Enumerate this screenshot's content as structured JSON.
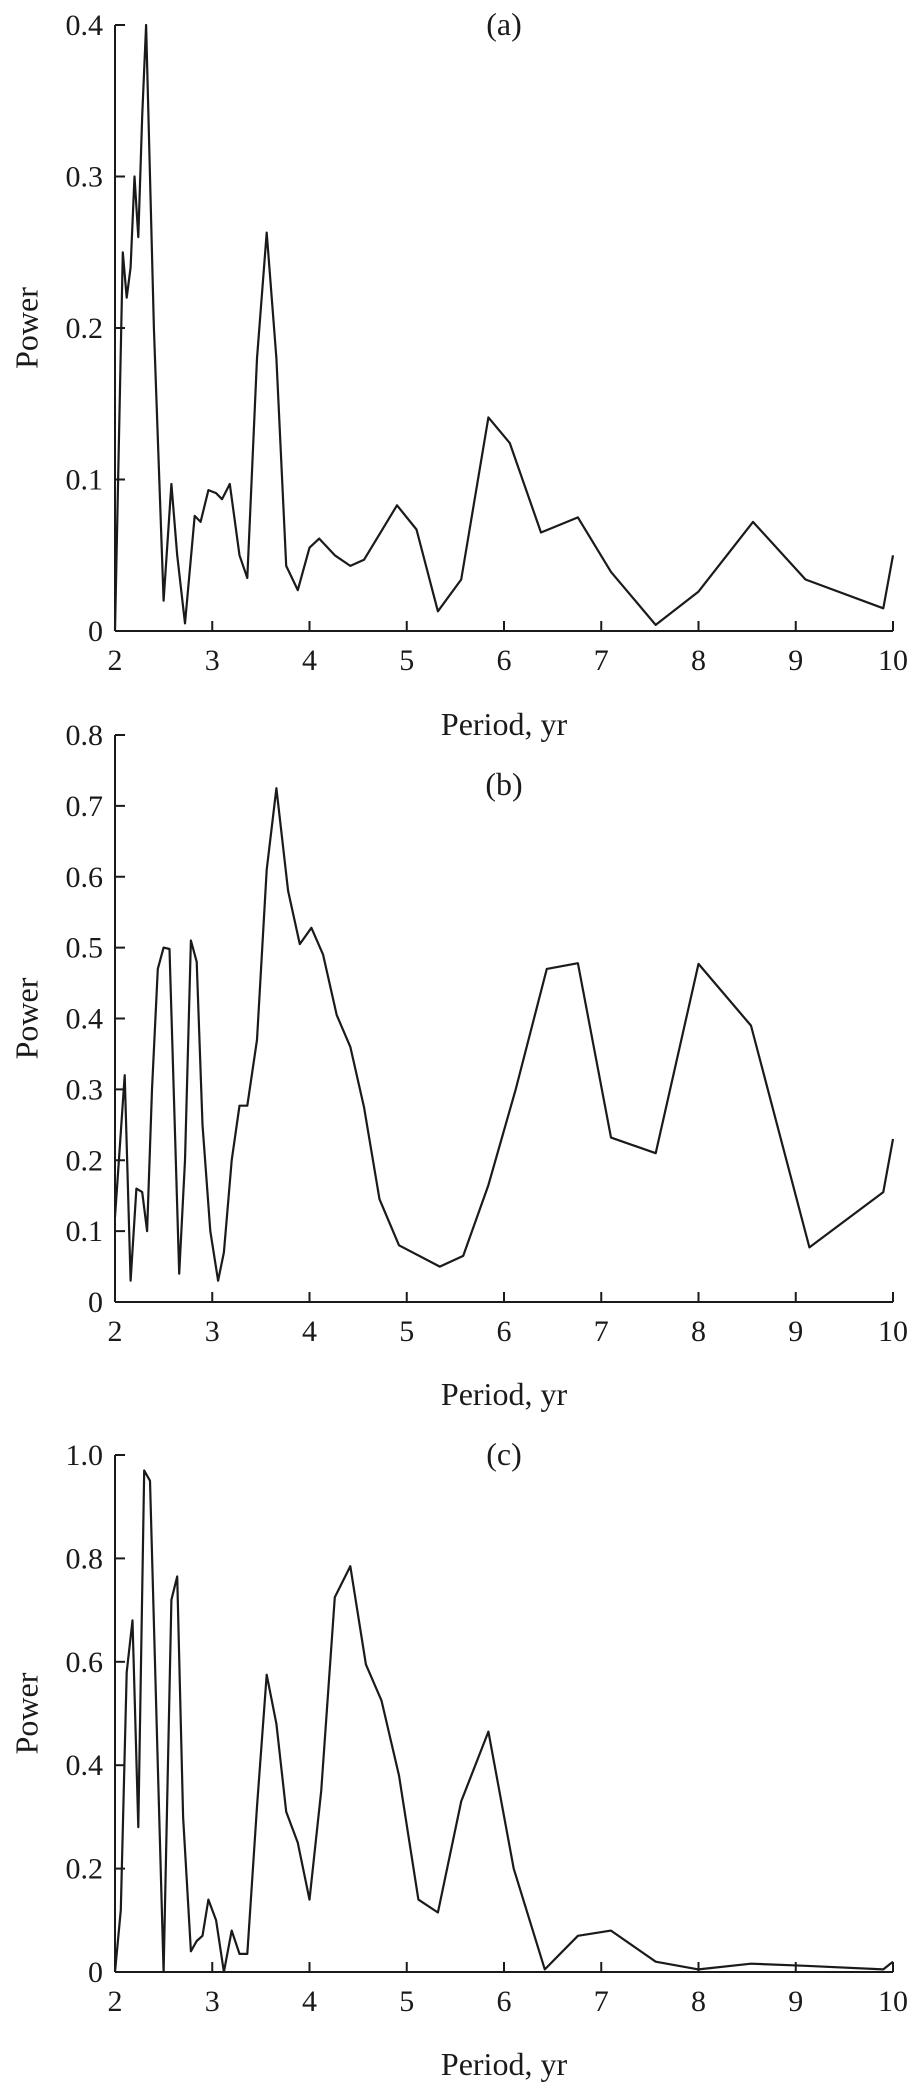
{
  "chart_data": [
    {
      "type": "line",
      "title": "(a)",
      "xlabel": "Period, yr",
      "ylabel": "Power",
      "xlim": [
        2,
        10
      ],
      "ylim": [
        0,
        0.4
      ],
      "xticks": [
        2,
        3,
        4,
        5,
        6,
        7,
        8,
        9,
        10
      ],
      "yticks": [
        0,
        0.1,
        0.2,
        0.3,
        0.4
      ],
      "ytick_labels": [
        "0",
        "0.1",
        "0.2",
        "0.3",
        "0.4"
      ],
      "x": [
        2.0,
        2.08,
        2.12,
        2.16,
        2.2,
        2.24,
        2.28,
        2.32,
        2.4,
        2.5,
        2.58,
        2.64,
        2.72,
        2.82,
        2.88,
        2.96,
        3.04,
        3.1,
        3.18,
        3.28,
        3.36,
        3.46,
        3.56,
        3.66,
        3.76,
        3.88,
        4.0,
        4.1,
        4.26,
        4.42,
        4.56,
        4.9,
        5.1,
        5.32,
        5.56,
        5.84,
        6.06,
        6.38,
        6.76,
        7.1,
        7.56,
        8.0,
        8.56,
        9.1,
        9.9,
        10.0
      ],
      "y": [
        0.0,
        0.25,
        0.22,
        0.24,
        0.3,
        0.26,
        0.34,
        0.4,
        0.2,
        0.02,
        0.097,
        0.05,
        0.005,
        0.076,
        0.072,
        0.093,
        0.091,
        0.087,
        0.097,
        0.05,
        0.035,
        0.18,
        0.263,
        0.18,
        0.043,
        0.027,
        0.055,
        0.061,
        0.05,
        0.043,
        0.047,
        0.083,
        0.067,
        0.013,
        0.034,
        0.141,
        0.124,
        0.065,
        0.075,
        0.039,
        0.004,
        0.026,
        0.072,
        0.034,
        0.015,
        0.05
      ]
    },
    {
      "type": "line",
      "title": "(b)",
      "xlabel": "Period, yr",
      "ylabel": "Power",
      "xlim": [
        2,
        10
      ],
      "ylim": [
        0,
        0.8
      ],
      "xticks": [
        2,
        3,
        4,
        5,
        6,
        7,
        8,
        9,
        10
      ],
      "yticks": [
        0,
        0.1,
        0.2,
        0.3,
        0.4,
        0.5,
        0.6,
        0.7,
        0.8
      ],
      "ytick_labels": [
        "0",
        "0.1",
        "0.2",
        "0.3",
        "0.4",
        "0.5",
        "0.6",
        "0.7",
        "0.8"
      ],
      "x": [
        2.0,
        2.04,
        2.1,
        2.16,
        2.22,
        2.28,
        2.33,
        2.38,
        2.44,
        2.5,
        2.56,
        2.66,
        2.72,
        2.78,
        2.84,
        2.9,
        2.98,
        3.06,
        3.12,
        3.2,
        3.28,
        3.36,
        3.46,
        3.56,
        3.66,
        3.78,
        3.9,
        4.02,
        4.14,
        4.28,
        4.42,
        4.56,
        4.72,
        4.92,
        5.34,
        5.58,
        5.84,
        6.12,
        6.44,
        6.76,
        7.1,
        7.56,
        8.0,
        8.54,
        9.14,
        9.9,
        10.0
      ],
      "y": [
        0.12,
        0.2,
        0.32,
        0.03,
        0.16,
        0.155,
        0.1,
        0.3,
        0.47,
        0.5,
        0.498,
        0.04,
        0.2,
        0.51,
        0.48,
        0.25,
        0.1,
        0.03,
        0.07,
        0.2,
        0.277,
        0.277,
        0.37,
        0.61,
        0.725,
        0.58,
        0.505,
        0.528,
        0.49,
        0.405,
        0.36,
        0.275,
        0.145,
        0.08,
        0.05,
        0.065,
        0.165,
        0.3,
        0.47,
        0.478,
        0.232,
        0.21,
        0.477,
        0.39,
        0.077,
        0.155,
        0.23
      ]
    },
    {
      "type": "line",
      "title": "(c)",
      "xlabel": "Period, yr",
      "ylabel": "Power",
      "xlim": [
        2,
        10
      ],
      "ylim": [
        0,
        1.0
      ],
      "xticks": [
        2,
        3,
        4,
        5,
        6,
        7,
        8,
        9,
        10
      ],
      "yticks": [
        0,
        0.2,
        0.4,
        0.6,
        0.8,
        1.0
      ],
      "ytick_labels": [
        "0",
        "0.2",
        "0.4",
        "0.6",
        "0.8",
        "1.0"
      ],
      "x": [
        2.0,
        2.06,
        2.12,
        2.18,
        2.24,
        2.3,
        2.36,
        2.44,
        2.5,
        2.58,
        2.64,
        2.7,
        2.78,
        2.84,
        2.9,
        2.96,
        3.04,
        3.12,
        3.2,
        3.28,
        3.36,
        3.46,
        3.56,
        3.66,
        3.76,
        3.88,
        4.0,
        4.12,
        4.26,
        4.42,
        4.58,
        4.74,
        4.92,
        5.12,
        5.32,
        5.56,
        5.84,
        6.1,
        6.42,
        6.76,
        7.1,
        7.56,
        8.0,
        8.54,
        9.1,
        9.9,
        10.0
      ],
      "y": [
        0.0,
        0.12,
        0.58,
        0.68,
        0.28,
        0.97,
        0.95,
        0.4,
        0.0,
        0.72,
        0.765,
        0.3,
        0.04,
        0.06,
        0.07,
        0.14,
        0.1,
        0.0,
        0.08,
        0.035,
        0.035,
        0.32,
        0.575,
        0.48,
        0.31,
        0.25,
        0.14,
        0.35,
        0.725,
        0.785,
        0.595,
        0.525,
        0.38,
        0.14,
        0.115,
        0.33,
        0.465,
        0.2,
        0.005,
        0.07,
        0.08,
        0.02,
        0.005,
        0.016,
        0.012,
        0.005,
        0.02
      ]
    }
  ]
}
